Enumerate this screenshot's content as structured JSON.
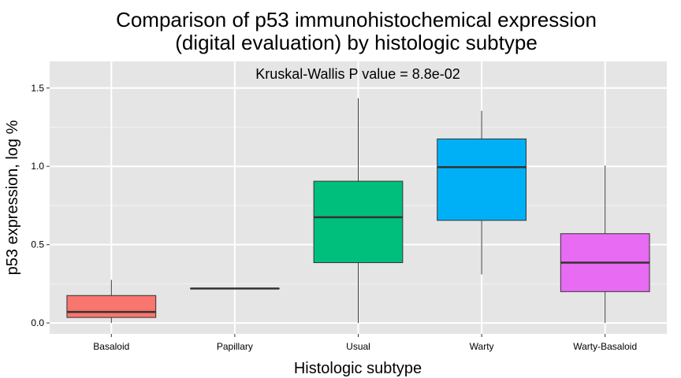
{
  "chart_data": {
    "type": "box",
    "title_lines": [
      "Comparison of p53 immunohistochemical expression",
      "(digital evaluation) by histologic subtype"
    ],
    "annotation": "Kruskal-Wallis P value = 8.8e-02",
    "xlabel": "Histologic subtype",
    "ylabel": "p53 expression, log %",
    "ylim": [
      -0.07,
      1.67
    ],
    "yticks": [
      0.0,
      0.5,
      1.0,
      1.5
    ],
    "ytick_labels": [
      "0.0",
      "0.5",
      "1.0",
      "1.5"
    ],
    "grid": true,
    "categories": [
      "Basaloid",
      "Papillary",
      "Usual",
      "Warty",
      "Warty-Basaloid"
    ],
    "boxes": [
      {
        "category": "Basaloid",
        "min": 0.0,
        "q1": 0.035,
        "median": 0.07,
        "q3": 0.175,
        "max": 0.275,
        "color": "#F8766D"
      },
      {
        "category": "Papillary",
        "min": 0.22,
        "q1": 0.22,
        "median": 0.22,
        "q3": 0.22,
        "max": 0.22,
        "color": "#A3A500"
      },
      {
        "category": "Usual",
        "min": 0.0,
        "q1": 0.385,
        "median": 0.675,
        "q3": 0.905,
        "max": 1.435,
        "color": "#00BF7D"
      },
      {
        "category": "Warty",
        "min": 0.31,
        "q1": 0.655,
        "median": 0.995,
        "q3": 1.175,
        "max": 1.355,
        "color": "#00B0F6"
      },
      {
        "category": "Warty-Basaloid",
        "min": 0.0,
        "q1": 0.2,
        "median": 0.385,
        "q3": 0.57,
        "max": 1.005,
        "color": "#E76BF3"
      }
    ]
  },
  "colors": {
    "panel_bg": "#E5E5E5",
    "grid_major": "#FFFFFF",
    "grid_minor": "#F2F2F2",
    "box_outline": "#333333",
    "tick_text": "#000000"
  }
}
